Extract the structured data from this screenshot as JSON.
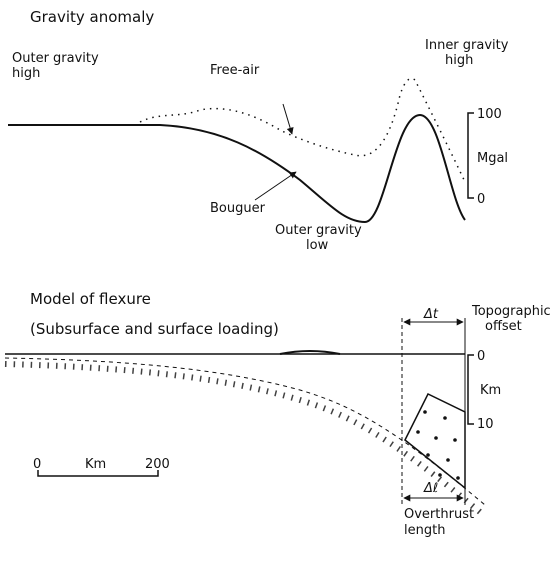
{
  "gravity_panel": {
    "title": "Gravity anomaly",
    "labels": {
      "outer_high": [
        "Outer gravity",
        "high"
      ],
      "free_air": "Free-air",
      "inner_high": [
        "Inner gravity",
        "high"
      ],
      "bouguer": "Bouguer",
      "outer_low": [
        "Outer gravity",
        "low"
      ]
    },
    "scale": {
      "top": "100",
      "unit": "Mgal",
      "bottom": "0"
    }
  },
  "flexure_panel": {
    "title": "Model of flexure",
    "subtitle": "(Subsurface and surface loading)",
    "topographic_offset": {
      "symbol": "Δt",
      "label": [
        "Topographic",
        "offset"
      ]
    },
    "depth_scale": {
      "top": "0",
      "unit": "Km",
      "bottom": "10"
    },
    "distance_scale": {
      "start": "0",
      "unit": "Km",
      "end": "200"
    },
    "overthrust": {
      "symbol": "Δℓ",
      "label": [
        "Overthrust",
        "length"
      ]
    }
  }
}
